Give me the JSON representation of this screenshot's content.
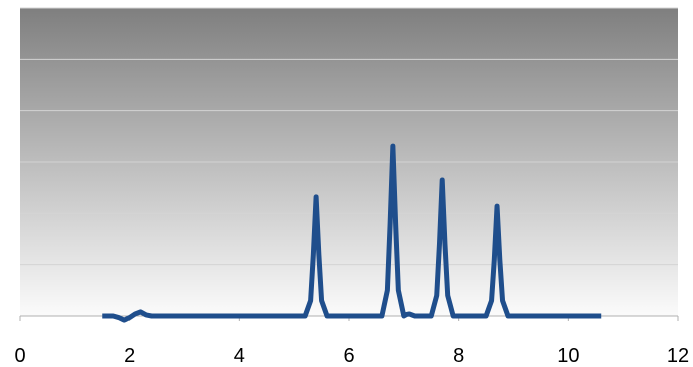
{
  "chart_data": {
    "type": "line",
    "x": [
      1.5,
      1.7,
      1.8,
      1.9,
      2.0,
      2.1,
      2.2,
      2.3,
      2.4,
      5.2,
      5.3,
      5.35,
      5.4,
      5.45,
      5.5,
      5.6,
      6.6,
      6.7,
      6.75,
      6.8,
      6.85,
      6.9,
      7.0,
      7.05,
      7.1,
      7.15,
      7.2,
      7.5,
      7.6,
      7.65,
      7.7,
      7.75,
      7.8,
      7.9,
      8.5,
      8.6,
      8.65,
      8.7,
      8.75,
      8.8,
      8.9,
      10.6
    ],
    "values": [
      0,
      0,
      -0.03,
      -0.08,
      -0.03,
      0.04,
      0.08,
      0.02,
      0,
      0,
      0.3,
      1.2,
      2.32,
      1.2,
      0.3,
      0,
      0,
      0.5,
      1.8,
      3.31,
      1.8,
      0.5,
      0,
      0.03,
      0.04,
      0.02,
      0,
      0,
      0.4,
      1.4,
      2.65,
      1.4,
      0.4,
      0,
      0,
      0.3,
      1.1,
      2.14,
      1.1,
      0.3,
      0,
      0
    ],
    "color": "#1f4e8c",
    "xlim": [
      0,
      12
    ],
    "xticks": [
      0,
      2,
      4,
      6,
      8,
      10,
      12
    ],
    "ylim": [
      0,
      6
    ],
    "yticks": [
      0,
      1,
      2,
      3,
      4,
      5,
      6
    ],
    "grid": true
  }
}
